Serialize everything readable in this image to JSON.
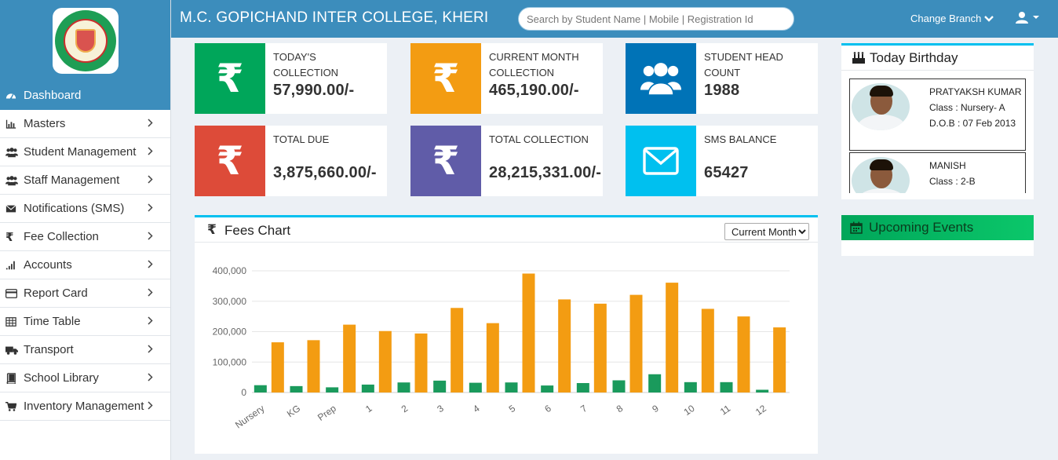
{
  "header": {
    "title": "M.C. GOPICHAND INTER COLLEGE, KHERI",
    "search_placeholder": "Search by Student Name | Mobile | Registration Id",
    "branch_label": "Change Branch"
  },
  "sidebar": {
    "logo_icon": "college-crest-logo",
    "items": [
      {
        "label": "Dashboard",
        "icon": "dashboard-icon",
        "active": true
      },
      {
        "label": "Masters",
        "icon": "bar-chart-icon"
      },
      {
        "label": "Student Management",
        "icon": "users-icon"
      },
      {
        "label": "Staff Management",
        "icon": "users-icon"
      },
      {
        "label": "Notifications (SMS)",
        "icon": "envelope-icon"
      },
      {
        "label": "Fee Collection",
        "icon": "rupee-icon"
      },
      {
        "label": "Accounts",
        "icon": "signal-icon"
      },
      {
        "label": "Report Card",
        "icon": "credit-card-icon"
      },
      {
        "label": "Time Table",
        "icon": "table-icon"
      },
      {
        "label": "Transport",
        "icon": "truck-icon"
      },
      {
        "label": "School Library",
        "icon": "book-icon"
      },
      {
        "label": "Inventory Management",
        "icon": "cart-icon"
      }
    ]
  },
  "stats": [
    {
      "label": "TODAY'S COLLECTION",
      "value": "57,990.00/-",
      "color": "#00a65a",
      "icon": "rupee-icon"
    },
    {
      "label": "CURRENT MONTH COLLECTION",
      "value": "465,190.00/-",
      "color": "#f39c12",
      "icon": "rupee-icon"
    },
    {
      "label": "STUDENT HEAD COUNT",
      "value": "1988",
      "color": "#0073b7",
      "icon": "users-icon"
    },
    {
      "label": "TOTAL DUE",
      "value": "3,875,660.00/-",
      "color": "#dd4b39",
      "icon": "rupee-icon"
    },
    {
      "label": "TOTAL COLLECTION",
      "value": "28,215,331.00/-",
      "color": "#605ca8",
      "icon": "rupee-icon"
    },
    {
      "label": "SMS BALANCE",
      "value": "65427",
      "color": "#00c0ef",
      "icon": "envelope-icon"
    }
  ],
  "fees_chart": {
    "title": "Fees Chart",
    "range_selected": "Current Month"
  },
  "chart_data": {
    "type": "bar",
    "categories": [
      "Nursery",
      "KG",
      "Prep",
      "1",
      "2",
      "3",
      "4",
      "5",
      "6",
      "7",
      "8",
      "9",
      "10",
      "11",
      "12"
    ],
    "series": [
      {
        "color": "#1a9a5c",
        "values": [
          24000,
          21000,
          17000,
          26000,
          33000,
          39000,
          32000,
          33000,
          23000,
          31000,
          40000,
          60000,
          34000,
          34000,
          9000
        ]
      },
      {
        "color": "#f39c12",
        "values": [
          165000,
          172000,
          223000,
          202000,
          194000,
          278000,
          228000,
          391000,
          306000,
          292000,
          321000,
          361000,
          275000,
          250000,
          214000
        ]
      }
    ],
    "ylim": [
      0,
      400000
    ],
    "yticks": [
      "0",
      "100,000",
      "200,000",
      "300,000",
      "400,000"
    ],
    "grid": true
  },
  "birthday": {
    "title": "Today Birthday",
    "students": [
      {
        "name": "PRATYAKSH KUMAR",
        "class": "Class : Nursery- A",
        "dob": "D.O.B : 07 Feb 2013"
      },
      {
        "name": "MANISH",
        "class": "Class : 2-B",
        "dob": ""
      }
    ]
  },
  "events": {
    "title": "Upcoming Events"
  },
  "colors": {
    "brand": "#3c8dbc",
    "panel_accent": "#00c0ef"
  }
}
